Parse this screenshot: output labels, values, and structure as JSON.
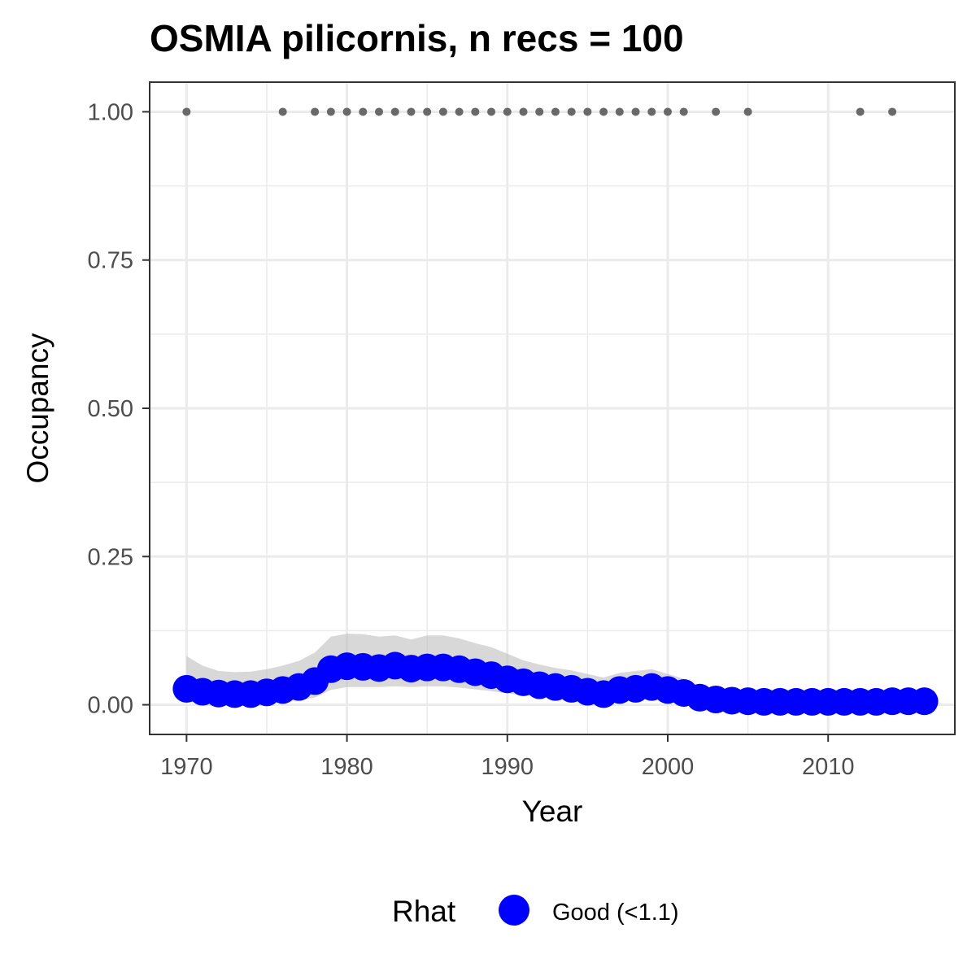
{
  "chart_data": {
    "type": "line",
    "title": "OSMIA pilicornis, n recs = 100",
    "xlabel": "Year",
    "ylabel": "Occupancy",
    "xlim": [
      1967.7,
      2017.9
    ],
    "ylim": [
      -0.05,
      1.05
    ],
    "x_ticks": [
      1970,
      1980,
      1990,
      2000,
      2010
    ],
    "x_tick_labels": [
      "1970",
      "1980",
      "1990",
      "2000",
      "2010"
    ],
    "y_ticks": [
      0.0,
      0.25,
      0.5,
      0.75,
      1.0
    ],
    "y_tick_labels": [
      "0.00",
      "0.25",
      "0.50",
      "0.75",
      "1.00"
    ],
    "grid": true,
    "series": [
      {
        "x": [
          1970,
          1971,
          1972,
          1973,
          1974,
          1975,
          1976,
          1977,
          1978,
          1979,
          1980,
          1981,
          1982,
          1983,
          1984,
          1985,
          1986,
          1987,
          1988,
          1989,
          1990,
          1991,
          1992,
          1993,
          1994,
          1995,
          1996,
          1997,
          1998,
          1999,
          2000,
          2001,
          2002,
          2003,
          2004,
          2005,
          2006,
          2007,
          2008,
          2009,
          2010,
          2011,
          2012,
          2013,
          2014,
          2015,
          2016
        ],
        "y": [
          0.027,
          0.022,
          0.019,
          0.018,
          0.018,
          0.021,
          0.025,
          0.03,
          0.04,
          0.06,
          0.065,
          0.064,
          0.062,
          0.066,
          0.061,
          0.063,
          0.063,
          0.06,
          0.055,
          0.05,
          0.043,
          0.038,
          0.033,
          0.03,
          0.027,
          0.022,
          0.018,
          0.025,
          0.027,
          0.03,
          0.025,
          0.02,
          0.012,
          0.009,
          0.007,
          0.006,
          0.005,
          0.005,
          0.005,
          0.005,
          0.005,
          0.005,
          0.005,
          0.005,
          0.006,
          0.006,
          0.006
        ],
        "lower": [
          0.005,
          0.004,
          0.004,
          0.004,
          0.004,
          0.005,
          0.006,
          0.008,
          0.012,
          0.025,
          0.03,
          0.03,
          0.03,
          0.031,
          0.03,
          0.031,
          0.031,
          0.029,
          0.026,
          0.023,
          0.019,
          0.016,
          0.014,
          0.012,
          0.01,
          0.008,
          0.007,
          0.009,
          0.01,
          0.011,
          0.009,
          0.007,
          0.003,
          0.002,
          0.001,
          0.001,
          0.001,
          0.001,
          0.001,
          0.001,
          0.001,
          0.001,
          0.001,
          0.001,
          0.001,
          0.001,
          0.001
        ],
        "upper": [
          0.082,
          0.066,
          0.057,
          0.055,
          0.056,
          0.06,
          0.066,
          0.074,
          0.088,
          0.115,
          0.12,
          0.119,
          0.115,
          0.117,
          0.11,
          0.117,
          0.117,
          0.112,
          0.104,
          0.097,
          0.086,
          0.075,
          0.068,
          0.062,
          0.058,
          0.052,
          0.046,
          0.054,
          0.057,
          0.06,
          0.052,
          0.044,
          0.032,
          0.026,
          0.022,
          0.02,
          0.019,
          0.019,
          0.019,
          0.019,
          0.019,
          0.019,
          0.019,
          0.019,
          0.02,
          0.02,
          0.02
        ]
      }
    ],
    "records": {
      "x": [
        1970,
        1976,
        1978,
        1979,
        1980,
        1981,
        1982,
        1983,
        1984,
        1985,
        1986,
        1987,
        1988,
        1989,
        1990,
        1991,
        1992,
        1993,
        1994,
        1995,
        1996,
        1997,
        1998,
        1999,
        2000,
        2001,
        2003,
        2005,
        2012,
        2014
      ],
      "y": 1.0
    },
    "colors": {
      "point": "#0000ff",
      "ribbon": "#bebebe",
      "records": "#696969",
      "grid": "#ebebeb",
      "panel_border": "#333333"
    },
    "legend": {
      "title": "Rhat",
      "label": "Good (<1.1)",
      "position": "bottom"
    }
  }
}
